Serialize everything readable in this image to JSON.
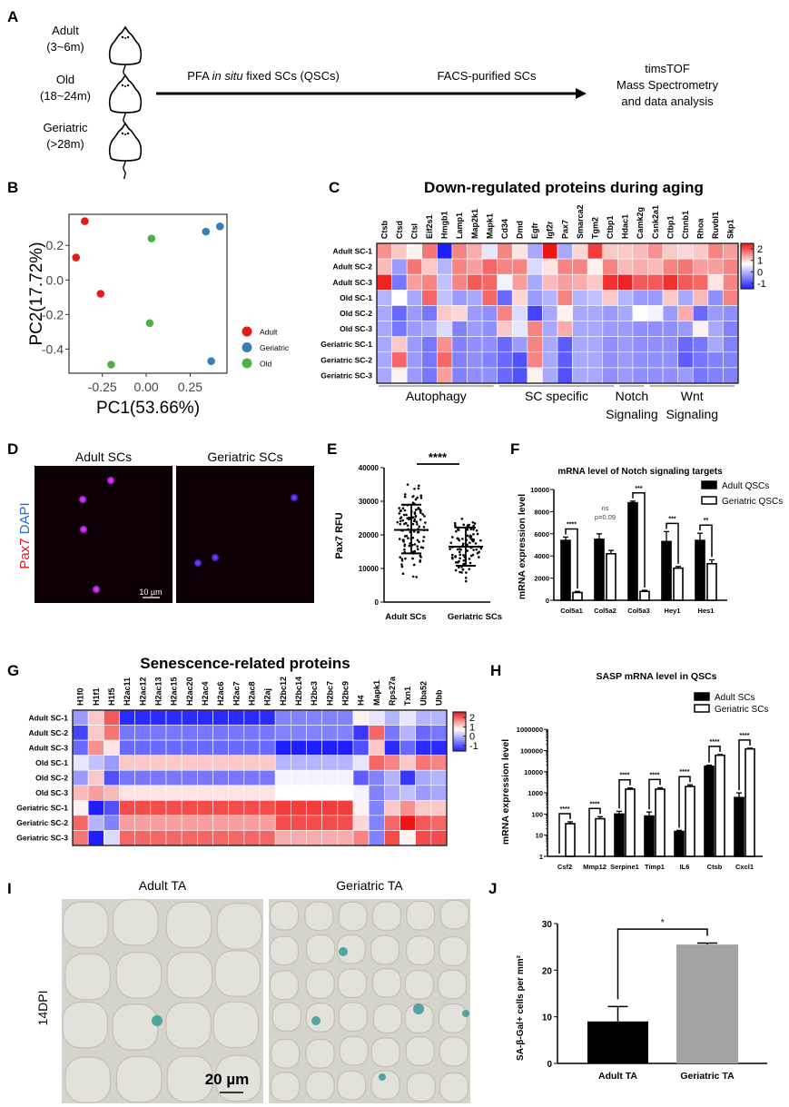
{
  "panel_letters": {
    "A": "A",
    "B": "B",
    "C": "C",
    "D": "D",
    "E": "E",
    "F": "F",
    "G": "G",
    "H": "H",
    "I": "I",
    "J": "J"
  },
  "panel_a": {
    "groups": [
      {
        "name": "Adult",
        "age": "(3~6m)"
      },
      {
        "name": "Old",
        "age": "(18~24m)"
      },
      {
        "name": "Geriatric",
        "age": "(>28m)"
      }
    ],
    "icon": "mouse-icon",
    "step1_prefix": "PFA ",
    "step1_italic": "in situ",
    "step1_suffix": " fixed SCs (QSCs)",
    "step2": "FACS-purified SCs",
    "result_lines": [
      "timsTOF",
      "Mass Spectrometry",
      "and data analysis"
    ]
  },
  "chart_data": [
    {
      "id": "B",
      "type": "scatter",
      "xlabel": "PC1(53.66%)",
      "ylabel": "PC2(17.72%)",
      "xlim": [
        -0.44,
        0.46
      ],
      "ylim": [
        -0.54,
        0.38
      ],
      "xticks": [
        -0.25,
        0.0,
        0.25
      ],
      "xtick_labels": [
        "-0.25",
        "0.00",
        "0.25"
      ],
      "yticks": [
        0.2,
        0.0,
        -0.2,
        -0.4
      ],
      "ytick_labels": [
        "0.2",
        "0.0",
        "-0.2",
        "-0.4"
      ],
      "legend_position": "right",
      "series": [
        {
          "name": "Adult",
          "color": "#e41a1c",
          "points": [
            [
              -0.35,
              0.34
            ],
            [
              -0.4,
              0.13
            ],
            [
              -0.26,
              -0.08
            ]
          ]
        },
        {
          "name": "Geriatric",
          "color": "#377eb8",
          "points": [
            [
              0.34,
              0.28
            ],
            [
              0.42,
              0.31
            ],
            [
              0.37,
              -0.47
            ]
          ]
        },
        {
          "name": "Old",
          "color": "#4daf4a",
          "points": [
            [
              0.03,
              0.24
            ],
            [
              0.02,
              -0.25
            ],
            [
              -0.2,
              -0.49
            ]
          ]
        }
      ]
    },
    {
      "id": "C",
      "type": "heatmap",
      "title": "Down-regulated proteins during aging",
      "columns": [
        "Ctsb",
        "Ctsd",
        "Ctsl",
        "Eif2s1",
        "Hmgb1",
        "Lamp1",
        "Map2k1",
        "Mapk1",
        "Cd34",
        "Dmd",
        "Egfr",
        "Igf2r",
        "Pax7",
        "Smarca2",
        "Tgm2",
        "Ctbp1",
        "Hdac1",
        "Camk2g",
        "Csnk2a1",
        "Ctbp1",
        "Ctnnb1",
        "Rhoa",
        "Ruvbl1",
        "Skp1"
      ],
      "rows": [
        "Adult SC-1",
        "Adult SC-2",
        "Adult SC-3",
        "Old SC-1",
        "Old SC-2",
        "Old SC-3",
        "Geriatric SC-1",
        "Geriatric SC-2",
        "Geriatric SC-3"
      ],
      "values": [
        [
          1.3,
          0.9,
          0.6,
          1.5,
          -1.3,
          1.4,
          1.1,
          0.3,
          1.4,
          0.7,
          -0.2,
          2.2,
          -0.2,
          0.8,
          1.9,
          0.9,
          0.9,
          1.0,
          1.3,
          0.9,
          0.8,
          0.9,
          1.4,
          1.2
        ],
        [
          1.0,
          -0.3,
          1.5,
          0.9,
          -0.1,
          1.4,
          1.2,
          1.6,
          1.4,
          1.4,
          0.2,
          0.7,
          1.4,
          1.4,
          0.6,
          1.4,
          1.0,
          1.1,
          1.0,
          1.4,
          1.5,
          1.2,
          1.2,
          1.4
        ],
        [
          2.1,
          -0.6,
          1.2,
          1.4,
          0.0,
          1.4,
          1.7,
          1.6,
          0.4,
          1.2,
          -0.2,
          1.0,
          1.2,
          1.1,
          0.9,
          2.0,
          2.1,
          1.7,
          1.7,
          2.0,
          1.7,
          1.6,
          0.7,
          1.4
        ],
        [
          -0.1,
          0.5,
          -0.2,
          1.6,
          0.0,
          -0.3,
          -0.2,
          1.6,
          -0.7,
          0.8,
          -0.3,
          -0.1,
          1.4,
          -0.1,
          0.0,
          0.9,
          -0.1,
          -0.3,
          -0.3,
          0.9,
          -0.2,
          1.0,
          -0.4,
          1.4
        ],
        [
          -0.2,
          -0.7,
          -0.3,
          -0.6,
          0.9,
          0.8,
          -0.3,
          -0.4,
          1.4,
          0.2,
          -1.0,
          -0.2,
          0.6,
          -0.2,
          -0.2,
          -0.3,
          -0.2,
          0.5,
          0.4,
          -0.3,
          1.1,
          -0.7,
          -0.3,
          -0.4
        ],
        [
          -0.2,
          -0.6,
          -0.3,
          -0.2,
          0.2,
          -0.5,
          -0.3,
          -0.4,
          0.9,
          0.3,
          1.4,
          -0.2,
          1.1,
          -0.2,
          -0.2,
          -0.3,
          -0.3,
          -0.4,
          -0.4,
          -0.4,
          -0.3,
          0.6,
          -0.2,
          -0.5
        ],
        [
          -0.2,
          0.9,
          -0.3,
          -0.6,
          1.3,
          -0.5,
          -0.4,
          -0.4,
          -0.7,
          -0.3,
          1.4,
          -0.2,
          -0.8,
          -0.2,
          -0.2,
          -0.4,
          -0.3,
          -0.4,
          -0.4,
          -0.4,
          -0.7,
          -0.6,
          -0.2,
          -0.5
        ],
        [
          -0.2,
          1.6,
          -0.3,
          -0.6,
          1.6,
          -0.5,
          -0.4,
          -0.5,
          -0.7,
          -0.9,
          1.4,
          -0.2,
          -0.8,
          -0.2,
          -0.2,
          -0.4,
          -0.3,
          -0.4,
          -0.4,
          -0.4,
          -0.8,
          -0.6,
          -0.5,
          -0.5
        ],
        [
          -0.2,
          0.6,
          -0.3,
          -0.6,
          1.2,
          -0.5,
          -0.4,
          -0.4,
          -0.7,
          -0.9,
          0.6,
          -0.2,
          -0.9,
          -0.2,
          -0.2,
          -0.4,
          -0.3,
          -0.4,
          -0.4,
          -0.4,
          -0.3,
          -0.6,
          -0.5,
          -0.5
        ]
      ],
      "colorbar_ticks": [
        "2",
        "1",
        "0",
        "-1"
      ],
      "colors": {
        "low": "#1e1eff",
        "mid": "#ffffff",
        "high": "#f01414"
      },
      "groups": [
        {
          "lines": [
            "Autophagy"
          ],
          "from": 0,
          "to": 7
        },
        {
          "lines": [
            "SC specific"
          ],
          "from": 8,
          "to": 15
        },
        {
          "lines": [
            "Notch",
            "Signaling"
          ],
          "from": 16,
          "to": 17
        },
        {
          "lines": [
            "Wnt",
            "Signaling"
          ],
          "from": 18,
          "to": 23
        }
      ]
    },
    {
      "id": "E",
      "type": "scatter",
      "ylabel": "Pax7 RFU",
      "ylim": [
        0,
        40000
      ],
      "yticks": [
        0,
        10000,
        20000,
        30000,
        40000
      ],
      "ytick_labels": [
        "0",
        "10000",
        "20000",
        "30000",
        "40000"
      ],
      "categories": [
        "Adult SCs",
        "Geriatric SCs"
      ],
      "groups": [
        {
          "name": "Adult SCs",
          "n": 120,
          "mean": 21500,
          "sd_low": 14500,
          "sd_high": 29000,
          "min": 5500,
          "max": 38500
        },
        {
          "name": "Geriatric SCs",
          "n": 95,
          "mean": 16500,
          "sd_low": 10800,
          "sd_high": 22200,
          "min": 4500,
          "max": 32000
        }
      ],
      "significance": "****"
    },
    {
      "id": "F",
      "type": "bar",
      "title": "mRNA level of Notch signaling targets",
      "ylabel": "mRNA expression level",
      "ylim": [
        0,
        10000
      ],
      "yticks": [
        0,
        2000,
        4000,
        6000,
        8000,
        10000
      ],
      "ytick_labels": [
        "0",
        "2000",
        "4000",
        "6000",
        "8000",
        "10000"
      ],
      "categories": [
        "Col5a1",
        "Col5a2",
        "Col5a3",
        "Hey1",
        "Hes1"
      ],
      "series": [
        {
          "name": "Adult QSCs",
          "fill": "#000000",
          "values": [
            5400,
            5500,
            8800,
            5300,
            5400
          ],
          "errors": [
            300,
            500,
            150,
            900,
            650
          ]
        },
        {
          "name": "Geriatric QSCs",
          "fill": "#ffffff",
          "values": [
            700,
            4200,
            800,
            2900,
            3300
          ],
          "errors": [
            100,
            300,
            100,
            150,
            350
          ]
        }
      ],
      "significance": [
        "****",
        "ns p=0.09",
        "***",
        "***",
        "**"
      ]
    },
    {
      "id": "G",
      "type": "heatmap",
      "title": "Senescence-related proteins",
      "columns": [
        "H1f0",
        "H1f1",
        "H1f5",
        "H2ac11",
        "H2ac12",
        "H2ac13",
        "H2ac15",
        "H2ac20",
        "H2ac4",
        "H2ac6",
        "H2ac7",
        "H2ac8",
        "H2aj",
        "H2bc12",
        "H2bc14",
        "H2bc3",
        "H2bc7",
        "H2bc9",
        "H4",
        "Mapk1",
        "Rps27a",
        "Txn1",
        "Uba52",
        "Ubb"
      ],
      "rows": [
        "Adult SC-1",
        "Adult SC-2",
        "Adult SC-3",
        "Old SC-1",
        "Old SC-2",
        "Old SC-3",
        "Geriatric SC-1",
        "Geriatric SC-2",
        "Geriatric SC-3"
      ],
      "values": [
        [
          -0.3,
          0.9,
          1.7,
          -1.2,
          -1.2,
          -1.2,
          -1.2,
          -1.2,
          -1.2,
          -1.2,
          -1.2,
          -1.2,
          -1.2,
          -0.5,
          -0.5,
          -0.5,
          -0.5,
          -0.5,
          0.6,
          0.3,
          -0.1,
          0.3,
          -0.1,
          -0.1
        ],
        [
          -1.0,
          0.9,
          1.5,
          -0.6,
          -0.6,
          -0.6,
          -0.6,
          -0.6,
          -0.6,
          -0.6,
          -0.6,
          -0.6,
          -0.6,
          -0.5,
          -0.5,
          -0.5,
          -0.5,
          -0.5,
          -1.1,
          1.6,
          -0.6,
          -0.1,
          -0.7,
          -0.6
        ],
        [
          -0.7,
          1.3,
          0.7,
          -0.7,
          -0.7,
          -0.7,
          -0.7,
          -0.7,
          -0.7,
          -0.7,
          -0.7,
          -0.7,
          -0.7,
          -1.3,
          -1.3,
          -1.3,
          -1.3,
          -1.3,
          -0.9,
          0.9,
          -1.2,
          -0.7,
          -1.2,
          -1.2
        ],
        [
          0.3,
          0.0,
          -0.3,
          0.9,
          0.9,
          0.9,
          0.9,
          0.9,
          0.9,
          0.9,
          0.9,
          0.9,
          0.9,
          -0.1,
          -0.1,
          -0.1,
          -0.1,
          -0.1,
          0.3,
          1.6,
          1.4,
          0.9,
          1.5,
          1.4
        ],
        [
          -0.3,
          0.9,
          -0.9,
          -0.6,
          -0.6,
          -0.6,
          -0.6,
          -0.6,
          -0.6,
          -0.6,
          -0.6,
          -0.6,
          -0.6,
          0.4,
          0.4,
          0.4,
          0.4,
          0.4,
          -0.8,
          -0.5,
          -0.1,
          -1.1,
          -0.2,
          -0.1
        ],
        [
          1.0,
          1.2,
          1.0,
          0.7,
          0.7,
          0.7,
          0.7,
          0.7,
          0.7,
          0.7,
          0.7,
          0.7,
          0.7,
          0.5,
          0.5,
          0.5,
          0.5,
          0.5,
          0.4,
          -0.5,
          -0.2,
          0.0,
          -0.3,
          -0.2
        ],
        [
          0.6,
          -1.3,
          -0.9,
          1.8,
          1.8,
          1.8,
          1.8,
          1.8,
          1.8,
          1.8,
          1.8,
          1.8,
          1.8,
          1.9,
          1.9,
          1.9,
          1.9,
          1.9,
          0.6,
          -0.5,
          0.9,
          1.3,
          0.9,
          0.9
        ],
        [
          1.6,
          -0.1,
          -0.5,
          1.2,
          1.2,
          1.2,
          1.2,
          1.2,
          1.2,
          1.2,
          1.2,
          1.2,
          1.2,
          1.8,
          1.8,
          1.8,
          1.8,
          1.8,
          0.8,
          -0.5,
          1.6,
          2.2,
          1.7,
          1.6
        ],
        [
          1.5,
          -1.3,
          0.2,
          1.6,
          1.6,
          1.6,
          1.6,
          1.6,
          1.6,
          1.6,
          1.6,
          1.6,
          1.6,
          1.1,
          1.1,
          1.1,
          1.1,
          1.1,
          1.4,
          -0.5,
          1.8,
          0.6,
          1.8,
          1.8
        ]
      ],
      "colorbar_ticks": [
        "2",
        "1",
        "0",
        "-1"
      ],
      "colors": {
        "low": "#1e1eff",
        "mid": "#ffffff",
        "high": "#f01414"
      }
    },
    {
      "id": "H",
      "type": "bar",
      "title": "SASP mRNA level in QSCs",
      "ylabel": "mRNA expression level",
      "yscale": "log",
      "ylim": [
        1,
        1000000
      ],
      "ytick_labels": [
        "1",
        "10",
        "100",
        "1000",
        "10000",
        "100000",
        "1000000"
      ],
      "categories": [
        "Csf2",
        "Mmp12",
        "Serpine1",
        "Timp1",
        "IL6",
        "Ctsb",
        "Cxcl1"
      ],
      "series": [
        {
          "name": "Adult SCs",
          "fill": "#000000",
          "values": [
            1,
            1,
            100,
            80,
            15,
            18000,
            600
          ],
          "errors": [
            0,
            0,
            35,
            45,
            2,
            2500,
            400
          ]
        },
        {
          "name": "Geriatric SCs",
          "fill": "#ffffff",
          "values": [
            35,
            60,
            1500,
            1500,
            2000,
            60000,
            120000
          ],
          "errors": [
            8,
            15,
            200,
            250,
            400,
            5000,
            10000
          ]
        }
      ],
      "significance": [
        "****",
        "****",
        "****",
        "****",
        "****",
        "****",
        "****"
      ]
    },
    {
      "id": "J",
      "type": "bar",
      "ylabel": "SA-β-Gal+ cells per mm²",
      "ylim": [
        0,
        30
      ],
      "yticks": [
        0,
        10,
        20,
        30
      ],
      "ytick_labels": [
        "0",
        "10",
        "20",
        "30"
      ],
      "categories": [
        "Adult TA",
        "Geriatric TA"
      ],
      "values": [
        9,
        25.5
      ],
      "errors": [
        3.2,
        0.3
      ],
      "colors": [
        "#000000",
        "#a3a3a6"
      ],
      "significance": "*"
    }
  ],
  "panel_d": {
    "titles": [
      "Adult SCs",
      "Geriatric SCs"
    ],
    "stain_label_red": "Pax7",
    "stain_label_blue": "DAPI",
    "scale_bar": "10 µm"
  },
  "panel_i": {
    "titles": [
      "Adult TA",
      "Geriatric TA"
    ],
    "row_label": "14DPI",
    "scale_bar": "20 µm"
  }
}
